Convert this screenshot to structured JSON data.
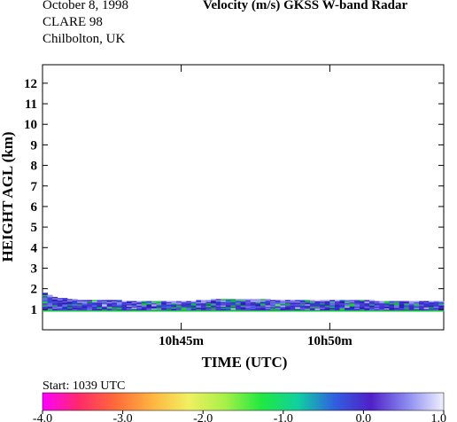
{
  "header": {
    "date": "October   8, 1998",
    "campaign": "CLARE 98",
    "site": "Chilbolton, UK",
    "title": "Velocity (m/s)   GKSS  W-band Radar"
  },
  "start_label": "Start: 1039 UTC",
  "chart_data": {
    "type": "heatmap",
    "title": "Velocity (m/s)",
    "xlabel": "TIME (UTC)",
    "ylabel": "HEIGHT AGL (km)",
    "ylim": [
      0,
      12.9
    ],
    "yticks": [
      "1",
      "2",
      "3",
      "4",
      "5",
      "6",
      "7",
      "8",
      "9",
      "10",
      "11",
      "12"
    ],
    "xlim": [
      "10:40:20",
      "10:53:50"
    ],
    "xticks": [
      {
        "t": "10:45",
        "label": "10h45m"
      },
      {
        "t": "10:50",
        "label": "10h50m"
      }
    ],
    "cloud_layer": {
      "base_km": 0.95,
      "top_km": [
        [
          "10:40:20",
          1.8
        ],
        [
          "10:40:50",
          1.55
        ],
        [
          "10:41:30",
          1.45
        ],
        [
          "10:43:00",
          1.4
        ],
        [
          "10:45:00",
          1.35
        ],
        [
          "10:46:00",
          1.45
        ],
        [
          "10:47:00",
          1.5
        ],
        [
          "10:48:00",
          1.45
        ],
        [
          "10:50:00",
          1.45
        ],
        [
          "10:51:30",
          1.4
        ],
        [
          "10:53:50",
          1.4
        ]
      ]
    },
    "colorbar": {
      "ticks": [
        "-4.0",
        "-3.0",
        "-2.0",
        "-1.0",
        "0.0",
        "1.0"
      ],
      "range": [
        -4.0,
        1.0
      ],
      "colors": [
        "#ff00ff",
        "#ff2a6a",
        "#ff6a3a",
        "#ffb440",
        "#f0f060",
        "#a8f048",
        "#20e840",
        "#10d0a0",
        "#3060e0",
        "#5020c8",
        "#8a8af0",
        "#f0f0ff"
      ]
    }
  }
}
